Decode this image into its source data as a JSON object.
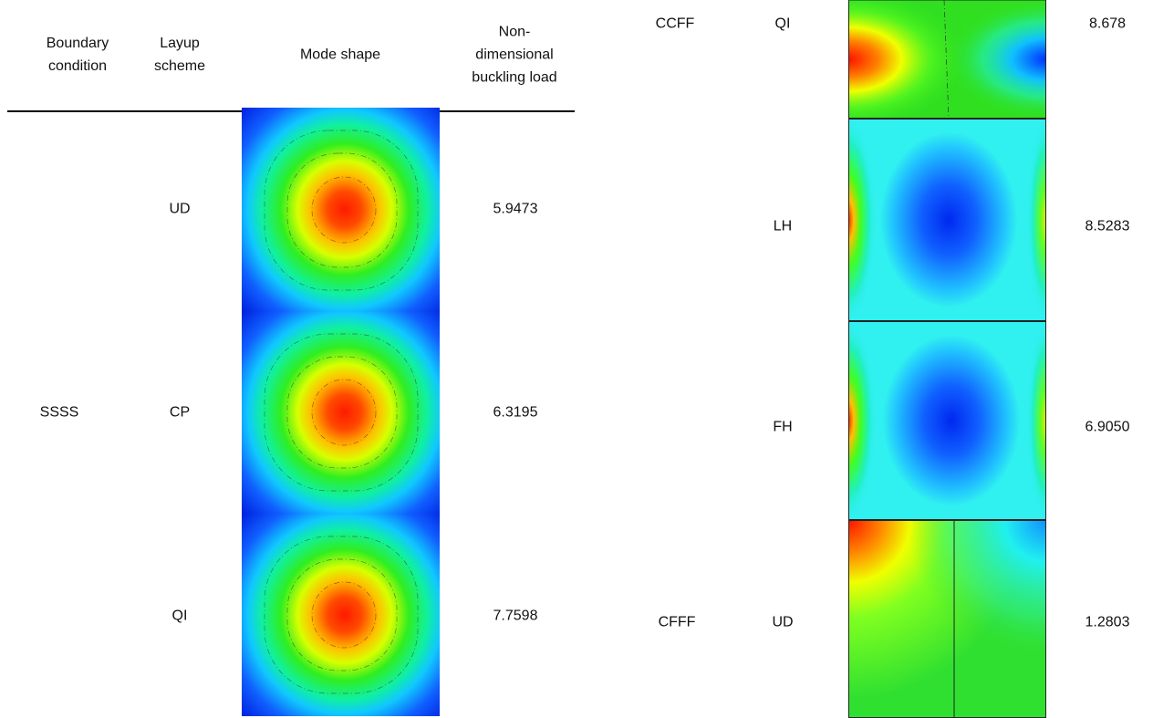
{
  "table": {
    "header": [
      "Boundary condition",
      "Layup scheme",
      "Mode shape",
      "Non-dimensional buckling load"
    ],
    "groups": [
      {
        "boundary": "SSSS",
        "rows": [
          {
            "layup": "UD",
            "load": "5.9473"
          },
          {
            "layup": "CP",
            "load": "6.3195"
          },
          {
            "layup": "QI",
            "load": "7.7598"
          }
        ]
      },
      {
        "boundary": "CCFF",
        "rows": [
          {
            "layup": "QI",
            "load": "8.678"
          },
          {
            "layup": "LH",
            "load": "8.5283"
          },
          {
            "layup": "FH",
            "load": "6.9050"
          }
        ]
      },
      {
        "boundary": "CFFF",
        "rows": [
          {
            "layup": "UD",
            "load": "1.2803"
          }
        ]
      }
    ]
  }
}
